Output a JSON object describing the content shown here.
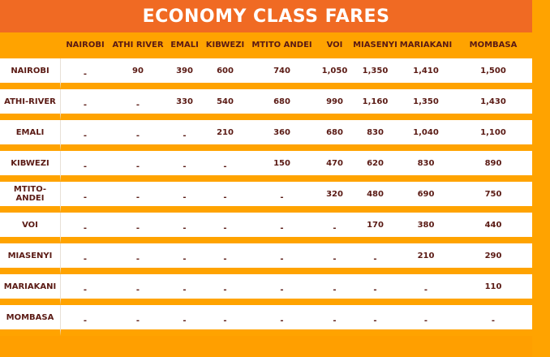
{
  "title": "ECONOMY CLASS FARES",
  "columns": [
    "NAIROBI",
    "ATHI RIVER",
    "EMALI",
    "KIBWEZI",
    "MTITO ANDEI",
    "VOI",
    "MIASENYI",
    "MARIAKANI",
    "MOMBASA"
  ],
  "rows": [
    {
      "label": "NAIROBI",
      "cells": [
        "-",
        "90",
        "390",
        "600",
        "740",
        "1,050",
        "1,350",
        "1,410",
        "1,500"
      ]
    },
    {
      "label": "ATHI-RIVER",
      "cells": [
        "-",
        "-",
        "330",
        "540",
        "680",
        "990",
        "1,160",
        "1,350",
        "1,430"
      ]
    },
    {
      "label": "EMALI",
      "cells": [
        "-",
        "-",
        "-",
        "210",
        "360",
        "680",
        "830",
        "1,040",
        "1,100"
      ]
    },
    {
      "label": "KIBWEZI",
      "cells": [
        "-",
        "-",
        "-",
        "-",
        "150",
        "470",
        "620",
        "830",
        "890"
      ]
    },
    {
      "label": "MTITO-ANDEI",
      "cells": [
        "-",
        "-",
        "-",
        "-",
        "-",
        "320",
        "480",
        "690",
        "750"
      ]
    },
    {
      "label": "VOI",
      "cells": [
        "-",
        "-",
        "-",
        "-",
        "-",
        "-",
        "170",
        "380",
        "440"
      ]
    },
    {
      "label": "MIASENYI",
      "cells": [
        "-",
        "-",
        "-",
        "-",
        "-",
        "-",
        "-",
        "210",
        "290"
      ]
    },
    {
      "label": "MARIAKANI",
      "cells": [
        "-",
        "-",
        "-",
        "-",
        "-",
        "-",
        "-",
        "-",
        "110"
      ]
    },
    {
      "label": "MOMBASA",
      "cells": [
        "-",
        "-",
        "-",
        "-",
        "-",
        "-",
        "-",
        "-",
        "-"
      ]
    }
  ],
  "colors": {
    "title_bar": "#F06A23",
    "background": "#FF9F00",
    "cell": "#FFFFFF",
    "text": "#5A1A14"
  }
}
